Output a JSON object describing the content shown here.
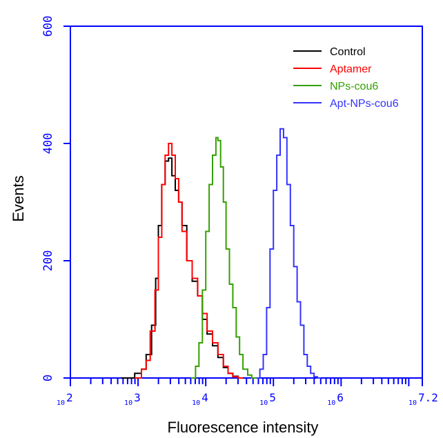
{
  "chart_data": {
    "type": "line",
    "title": "",
    "xlabel": "Fluorescence intensity",
    "ylabel": "Events",
    "x_scale": "log10",
    "xlim_exponent": [
      2,
      7.2
    ],
    "ylim": [
      0,
      600
    ],
    "y_ticks": [
      {
        "value": 0,
        "label": "0"
      },
      {
        "value": 200,
        "label": "200"
      },
      {
        "value": 400,
        "label": "400"
      },
      {
        "value": 600,
        "label": "600"
      }
    ],
    "x_ticks": [
      {
        "exponent": 2,
        "base": "10",
        "exp_label": "2"
      },
      {
        "exponent": 3,
        "base": "10",
        "exp_label": "3"
      },
      {
        "exponent": 4,
        "base": "10",
        "exp_label": "4"
      },
      {
        "exponent": 5,
        "base": "10",
        "exp_label": "5"
      },
      {
        "exponent": 6,
        "base": "10",
        "exp_label": "6"
      },
      {
        "exponent": 7.2,
        "base": "10",
        "exp_label": "7.2"
      }
    ],
    "axis_color": "#0000ff",
    "legend_position": "top-right",
    "series": [
      {
        "name": "Control",
        "color": "#000000",
        "x_exponent": [
          2.75,
          2.85,
          2.95,
          3.05,
          3.12,
          3.2,
          3.26,
          3.3,
          3.35,
          3.4,
          3.45,
          3.5,
          3.55,
          3.6,
          3.65,
          3.72,
          3.8,
          3.88,
          3.95,
          4.02,
          4.1,
          4.18,
          4.26,
          4.33,
          4.4,
          4.48,
          4.55
        ],
        "values": [
          0,
          0,
          8,
          15,
          40,
          90,
          170,
          260,
          330,
          370,
          375,
          345,
          320,
          300,
          260,
          200,
          165,
          140,
          100,
          75,
          55,
          35,
          18,
          8,
          3,
          0,
          0
        ]
      },
      {
        "name": "Aptamer",
        "color": "#ff0000",
        "x_exponent": [
          2.95,
          3.05,
          3.12,
          3.18,
          3.25,
          3.3,
          3.35,
          3.4,
          3.45,
          3.5,
          3.55,
          3.6,
          3.65,
          3.72,
          3.8,
          3.88,
          3.95,
          4.02,
          4.1,
          4.18,
          4.26,
          4.33,
          4.4,
          4.48,
          4.55
        ],
        "values": [
          0,
          15,
          30,
          80,
          150,
          240,
          330,
          380,
          400,
          380,
          340,
          300,
          250,
          200,
          170,
          140,
          110,
          80,
          60,
          40,
          20,
          8,
          2,
          0,
          0
        ]
      },
      {
        "name": "NPs-cou6",
        "color": "#33a000",
        "x_exponent": [
          3.78,
          3.85,
          3.9,
          3.95,
          4.0,
          4.05,
          4.1,
          4.15,
          4.18,
          4.22,
          4.26,
          4.3,
          4.35,
          4.4,
          4.45,
          4.5,
          4.55,
          4.62,
          4.68,
          4.75
        ],
        "values": [
          0,
          20,
          60,
          150,
          250,
          330,
          380,
          410,
          405,
          360,
          300,
          220,
          160,
          120,
          70,
          40,
          15,
          5,
          0,
          0
        ]
      },
      {
        "name": "Apt-NPs-cou6",
        "color": "#3333ff",
        "x_exponent": [
          4.75,
          4.8,
          4.85,
          4.9,
          4.95,
          5.0,
          5.05,
          5.1,
          5.15,
          5.2,
          5.25,
          5.3,
          5.35,
          5.4,
          5.45,
          5.5,
          5.55,
          5.6,
          5.65,
          5.7
        ],
        "values": [
          0,
          15,
          40,
          120,
          220,
          320,
          380,
          425,
          410,
          330,
          260,
          190,
          130,
          90,
          40,
          20,
          8,
          2,
          0,
          0
        ]
      }
    ]
  }
}
